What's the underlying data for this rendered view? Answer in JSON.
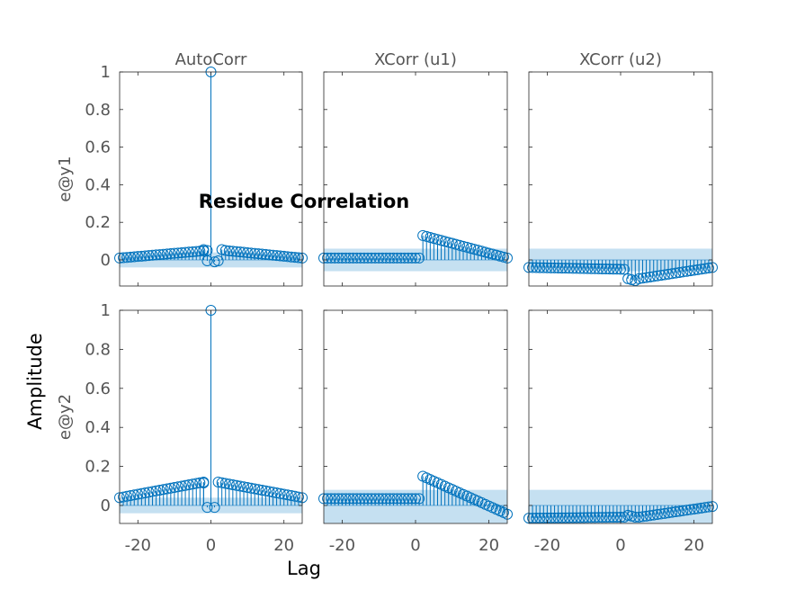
{
  "colors": {
    "stem": "#0072BD",
    "confidence": "#C5E0F1",
    "axis": "#262626"
  },
  "figure": {
    "title": "Residue Correlation",
    "xlabel": "Lag",
    "ylabel": "Amplitude"
  },
  "chart_data": {
    "type": "stem",
    "title": "Residue Correlation",
    "xlabel": "Lag",
    "ylabel": "Amplitude",
    "columns": [
      "AutoCorr",
      "XCorr (u1)",
      "XCorr (u2)"
    ],
    "rows": [
      "e@y1",
      "e@y2"
    ],
    "xlim": [
      -25,
      25
    ],
    "xticks": [
      -20,
      0,
      20
    ],
    "ylim": [
      -0.15,
      1
    ],
    "yticks": [
      0,
      0.2,
      0.4,
      0.6,
      0.8,
      1
    ],
    "panels": [
      {
        "row": 0,
        "col": 0,
        "confidence": [
          -0.04,
          0.04
        ],
        "segments": [
          {
            "from": -25,
            "to": -1,
            "start": 0.01,
            "end": 0.05
          }
        ],
        "points": [
          {
            "x": -2,
            "y": 0.055
          },
          {
            "x": -1,
            "y": -0.005
          },
          {
            "x": 0,
            "y": 1
          },
          {
            "x": 1,
            "y": -0.01
          },
          {
            "x": 2,
            "y": -0.005
          },
          {
            "x": 3,
            "y": 0.055
          }
        ],
        "segments2": [
          {
            "from": 4,
            "to": 25,
            "start": 0.05,
            "end": 0.01
          }
        ]
      },
      {
        "row": 0,
        "col": 1,
        "confidence": [
          -0.06,
          0.06
        ],
        "segments": [
          {
            "from": -25,
            "to": 1,
            "start": 0.01,
            "end": 0.01
          },
          {
            "from": 2,
            "to": 25,
            "start": 0.13,
            "end": 0.01
          }
        ]
      },
      {
        "row": 0,
        "col": 2,
        "confidence": [
          -0.06,
          0.06
        ],
        "segments": [
          {
            "from": -25,
            "to": 1,
            "start": -0.04,
            "end": -0.05
          },
          {
            "from": 2,
            "to": 4,
            "start": -0.1,
            "end": -0.11
          },
          {
            "from": 5,
            "to": 25,
            "start": -0.1,
            "end": -0.04
          }
        ]
      },
      {
        "row": 1,
        "col": 0,
        "confidence": [
          -0.04,
          0.04
        ],
        "segments": [
          {
            "from": -25,
            "to": -2,
            "start": 0.04,
            "end": 0.12
          },
          {
            "from": 2,
            "to": 25,
            "start": 0.12,
            "end": 0.04
          }
        ],
        "points": [
          {
            "x": -1,
            "y": -0.01
          },
          {
            "x": 0,
            "y": 1
          },
          {
            "x": 1,
            "y": -0.01
          },
          {
            "x": -2,
            "y": 0.115
          }
        ]
      },
      {
        "row": 1,
        "col": 1,
        "confidence": [
          -0.09,
          0.08
        ],
        "segments": [
          {
            "from": -25,
            "to": 1,
            "start": 0.035,
            "end": 0.035
          },
          {
            "from": 2,
            "to": 25,
            "start": 0.15,
            "end": -0.045
          }
        ]
      },
      {
        "row": 1,
        "col": 2,
        "confidence": [
          -0.09,
          0.08
        ],
        "segments": [
          {
            "from": -25,
            "to": 1,
            "start": -0.065,
            "end": -0.06
          },
          {
            "from": 2,
            "to": 4,
            "start": -0.05,
            "end": -0.06
          },
          {
            "from": 5,
            "to": 25,
            "start": -0.06,
            "end": -0.005
          }
        ]
      }
    ]
  }
}
